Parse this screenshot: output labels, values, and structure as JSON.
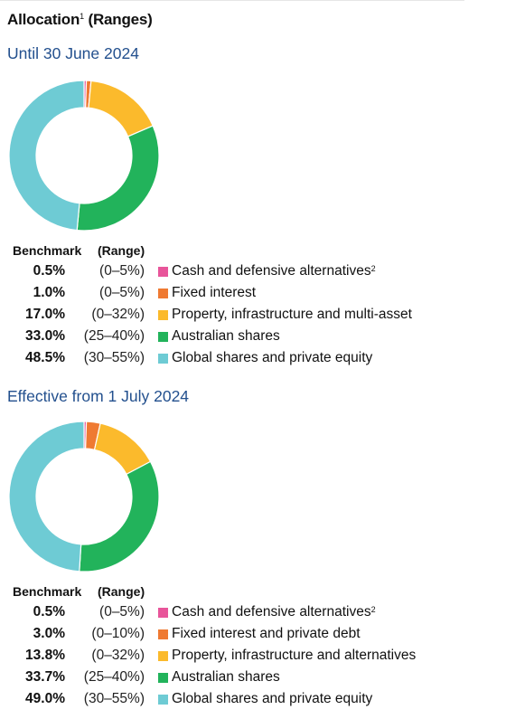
{
  "title": {
    "text": "Allocation",
    "sup": "1",
    "suffix": " (Ranges)"
  },
  "legend_headers": {
    "benchmark": "Benchmark",
    "range": "(Range)"
  },
  "chart_data": [
    {
      "type": "pie",
      "title": "Until 30 June 2024",
      "categories": [
        "Cash and defensive alternatives",
        "Fixed interest",
        "Property, infrastructure and multi-asset",
        "Australian shares",
        "Global shares and private equity"
      ],
      "values": [
        0.5,
        1.0,
        17.0,
        33.0,
        48.5
      ],
      "benchmark_labels": [
        "0.5%",
        "1.0%",
        "17.0%",
        "33.0%",
        "48.5%"
      ],
      "ranges": [
        "(0–5%)",
        "(0–5%)",
        "(0–32%)",
        "(25–40%)",
        "(30–55%)"
      ],
      "label_sups": [
        "2",
        "",
        "",
        "",
        ""
      ],
      "colors": [
        "#e8559a",
        "#ef7a32",
        "#fbba2c",
        "#22b35b",
        "#6ecbd4"
      ]
    },
    {
      "type": "pie",
      "title": "Effective from 1 July 2024",
      "categories": [
        "Cash and defensive alternatives",
        "Fixed interest and private debt",
        "Property, infrastructure and alternatives",
        "Australian shares",
        "Global shares and private equity"
      ],
      "values": [
        0.5,
        3.0,
        13.8,
        33.7,
        49.0
      ],
      "benchmark_labels": [
        "0.5%",
        "3.0%",
        "13.8%",
        "33.7%",
        "49.0%"
      ],
      "ranges": [
        "(0–5%)",
        "(0–10%)",
        "(0–32%)",
        "(25–40%)",
        "(30–55%)"
      ],
      "label_sups": [
        "2",
        "",
        "",
        "",
        ""
      ],
      "colors": [
        "#e8559a",
        "#ef7a32",
        "#fbba2c",
        "#22b35b",
        "#6ecbd4"
      ]
    }
  ]
}
